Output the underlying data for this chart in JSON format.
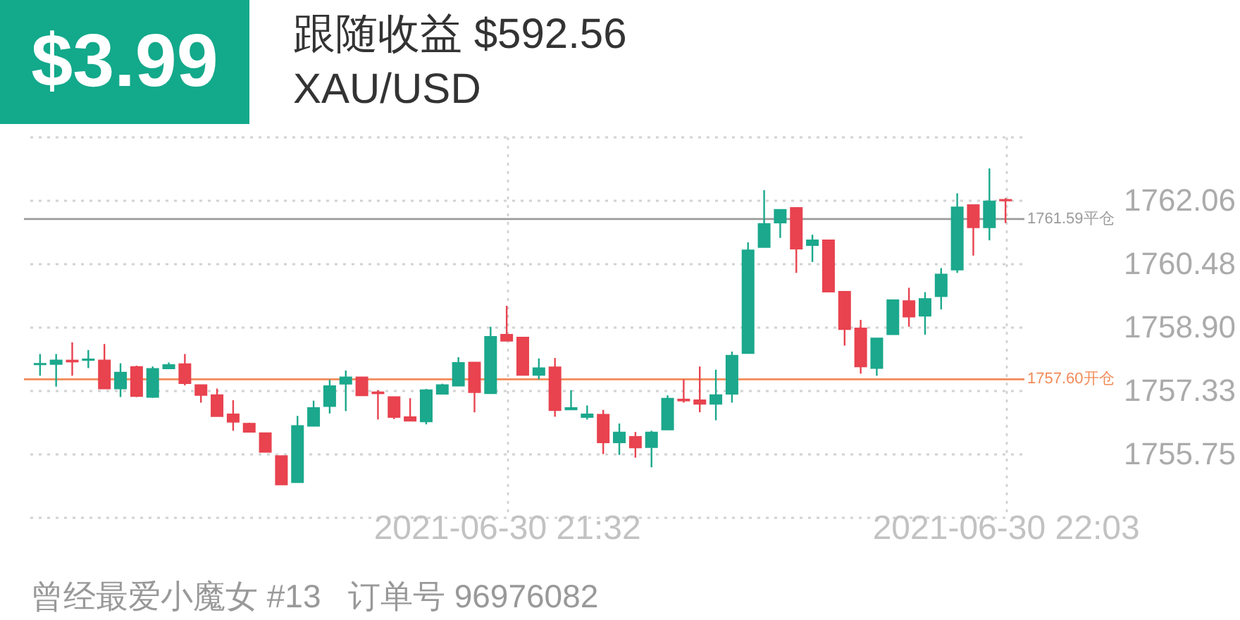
{
  "chart_data": {
    "type": "candlestick",
    "title": "跟随收益 $592.56",
    "subtitle": "XAU/USD",
    "annotations": [
      "$3.99",
      "曾经最爱小魔女 #13   订单号 96976082"
    ],
    "x": [
      "2021-06-30T21:03",
      "2021-06-30T21:04",
      "2021-06-30T21:05",
      "2021-06-30T21:06",
      "2021-06-30T21:07",
      "2021-06-30T21:08",
      "2021-06-30T21:09",
      "2021-06-30T21:10",
      "2021-06-30T21:11",
      "2021-06-30T21:12",
      "2021-06-30T21:13",
      "2021-06-30T21:14",
      "2021-06-30T21:15",
      "2021-06-30T21:16",
      "2021-06-30T21:17",
      "2021-06-30T21:18",
      "2021-06-30T21:19",
      "2021-06-30T21:20",
      "2021-06-30T21:21",
      "2021-06-30T21:22",
      "2021-06-30T21:23",
      "2021-06-30T21:24",
      "2021-06-30T21:25",
      "2021-06-30T21:26",
      "2021-06-30T21:27",
      "2021-06-30T21:28",
      "2021-06-30T21:29",
      "2021-06-30T21:30",
      "2021-06-30T21:31",
      "2021-06-30T21:32",
      "2021-06-30T21:33",
      "2021-06-30T21:34",
      "2021-06-30T21:35",
      "2021-06-30T21:36",
      "2021-06-30T21:37",
      "2021-06-30T21:38",
      "2021-06-30T21:39",
      "2021-06-30T21:40",
      "2021-06-30T21:41",
      "2021-06-30T21:42",
      "2021-06-30T21:43",
      "2021-06-30T21:44",
      "2021-06-30T21:45",
      "2021-06-30T21:46",
      "2021-06-30T21:47",
      "2021-06-30T21:48",
      "2021-06-30T21:49",
      "2021-06-30T21:50",
      "2021-06-30T21:51",
      "2021-06-30T21:52",
      "2021-06-30T21:53",
      "2021-06-30T21:54",
      "2021-06-30T21:55",
      "2021-06-30T21:56",
      "2021-06-30T21:57",
      "2021-06-30T21:58",
      "2021-06-30T21:59",
      "2021-06-30T22:00",
      "2021-06-30T22:01",
      "2021-06-30T22:02",
      "2021-06-30T22:03"
    ],
    "ohlc": [
      [
        1757.97,
        1758.23,
        1757.69,
        1757.99
      ],
      [
        1757.98,
        1758.23,
        1757.42,
        1758.07
      ],
      [
        1758.07,
        1758.52,
        1757.69,
        1758.04
      ],
      [
        1758.08,
        1758.33,
        1757.88,
        1758.1
      ],
      [
        1758.07,
        1758.48,
        1757.37,
        1757.37
      ],
      [
        1757.37,
        1758.0,
        1757.16,
        1757.77
      ],
      [
        1757.91,
        1757.94,
        1757.16,
        1757.18
      ],
      [
        1757.16,
        1757.92,
        1757.14,
        1757.86
      ],
      [
        1757.87,
        1758.02,
        1757.86,
        1757.96
      ],
      [
        1757.98,
        1758.23,
        1757.45,
        1757.5
      ],
      [
        1757.46,
        1757.46,
        1757.02,
        1757.21
      ],
      [
        1757.21,
        1757.37,
        1756.68,
        1756.68
      ],
      [
        1756.73,
        1757.08,
        1756.32,
        1756.54
      ],
      [
        1756.5,
        1756.52,
        1756.28,
        1756.29
      ],
      [
        1756.26,
        1756.26,
        1755.79,
        1755.79
      ],
      [
        1755.69,
        1755.69,
        1754.98,
        1754.98
      ],
      [
        1755.04,
        1756.69,
        1755.03,
        1756.44
      ],
      [
        1756.44,
        1757.07,
        1756.44,
        1756.89
      ],
      [
        1756.93,
        1757.59,
        1756.75,
        1757.43
      ],
      [
        1757.49,
        1757.82,
        1756.81,
        1757.65
      ],
      [
        1757.65,
        1757.65,
        1757.2,
        1757.2
      ],
      [
        1757.28,
        1757.33,
        1756.6,
        1757.25
      ],
      [
        1757.16,
        1757.16,
        1756.61,
        1756.66
      ],
      [
        1756.66,
        1757.13,
        1756.56,
        1756.57
      ],
      [
        1756.55,
        1757.36,
        1756.48,
        1757.33
      ],
      [
        1757.24,
        1757.49,
        1757.24,
        1757.46
      ],
      [
        1757.44,
        1758.15,
        1757.44,
        1758.01
      ],
      [
        1758.02,
        1758.02,
        1756.78,
        1757.28
      ],
      [
        1757.25,
        1758.91,
        1757.25,
        1758.66
      ],
      [
        1758.71,
        1759.43,
        1758.56,
        1758.56
      ],
      [
        1758.64,
        1758.64,
        1757.71,
        1757.71
      ],
      [
        1757.71,
        1758.12,
        1757.6,
        1757.88
      ],
      [
        1757.9,
        1758.13,
        1756.67,
        1756.83
      ],
      [
        1756.85,
        1757.33,
        1756.85,
        1756.89
      ],
      [
        1756.66,
        1756.95,
        1756.6,
        1756.73
      ],
      [
        1756.72,
        1756.84,
        1755.74,
        1756.03
      ],
      [
        1756.03,
        1756.5,
        1755.72,
        1756.28
      ],
      [
        1756.17,
        1756.29,
        1755.65,
        1755.9
      ],
      [
        1755.91,
        1756.32,
        1755.41,
        1756.28
      ],
      [
        1756.35,
        1757.2,
        1756.35,
        1757.12
      ],
      [
        1757.1,
        1757.6,
        1757.02,
        1757.07
      ],
      [
        1757.08,
        1757.92,
        1756.78,
        1756.99
      ],
      [
        1756.99,
        1757.84,
        1756.58,
        1757.21
      ],
      [
        1757.24,
        1758.29,
        1757.02,
        1758.19
      ],
      [
        1758.25,
        1761.01,
        1758.25,
        1760.81
      ],
      [
        1760.89,
        1762.31,
        1760.89,
        1761.47
      ],
      [
        1761.5,
        1761.82,
        1761.12,
        1761.82
      ],
      [
        1761.87,
        1761.87,
        1760.25,
        1760.85
      ],
      [
        1760.94,
        1761.2,
        1760.52,
        1761.06
      ],
      [
        1761.06,
        1761.06,
        1759.78,
        1759.78
      ],
      [
        1759.78,
        1759.78,
        1758.44,
        1758.85
      ],
      [
        1758.87,
        1759.08,
        1757.74,
        1757.92
      ],
      [
        1757.88,
        1758.62,
        1757.69,
        1758.62
      ],
      [
        1758.72,
        1759.57,
        1758.72,
        1759.57
      ],
      [
        1759.55,
        1759.88,
        1758.91,
        1759.16
      ],
      [
        1759.18,
        1759.77,
        1758.71,
        1759.6
      ],
      [
        1759.67,
        1760.37,
        1759.34,
        1760.21
      ],
      [
        1760.33,
        1762.23,
        1760.25,
        1761.88
      ],
      [
        1761.94,
        1761.94,
        1760.68,
        1761.38
      ],
      [
        1761.38,
        1762.85,
        1761.06,
        1762.03
      ],
      [
        1762.07,
        1762.11,
        1761.49,
        1762.05
      ]
    ],
    "colors": [
      "#1ba88c",
      "#1ba88c",
      "#e8434f",
      "#1ba88c",
      "#e8434f",
      "#1ba88c",
      "#e8434f",
      "#1ba88c",
      "#1ba88c",
      "#e8434f",
      "#e8434f",
      "#e8434f",
      "#e8434f",
      "#e8434f",
      "#e8434f",
      "#e8434f",
      "#1ba88c",
      "#1ba88c",
      "#1ba88c",
      "#1ba88c",
      "#e8434f",
      "#e8434f",
      "#e8434f",
      "#e8434f",
      "#1ba88c",
      "#1ba88c",
      "#1ba88c",
      "#e8434f",
      "#1ba88c",
      "#e8434f",
      "#e8434f",
      "#1ba88c",
      "#e8434f",
      "#1ba88c",
      "#1ba88c",
      "#e8434f",
      "#1ba88c",
      "#e8434f",
      "#1ba88c",
      "#1ba88c",
      "#e8434f",
      "#e8434f",
      "#1ba88c",
      "#1ba88c",
      "#1ba88c",
      "#1ba88c",
      "#1ba88c",
      "#e8434f",
      "#1ba88c",
      "#e8434f",
      "#e8434f",
      "#e8434f",
      "#1ba88c",
      "#1ba88c",
      "#e8434f",
      "#1ba88c",
      "#1ba88c",
      "#1ba88c",
      "#e8434f",
      "#1ba88c",
      "#e8434f"
    ],
    "xlim": [
      "2021-06-30T21:02",
      "2021-06-30T22:04"
    ],
    "xticks": [
      {
        "value": "2021-06-30T21:32",
        "label": "2021-06-30 21:32"
      },
      {
        "value": "2021-06-30T22:03",
        "label": "2021-06-30 22:03"
      }
    ],
    "ylim": [
      1754.17,
      1763.64
    ],
    "yticks": [
      {
        "value": 1754.17,
        "label": null
      },
      1755.75,
      1757.33,
      {
        "value": 1758.9,
        "label": "1758.90"
      },
      1760.48,
      1762.06,
      {
        "value": 1763.64,
        "label": null
      }
    ],
    "grid": true,
    "ref_lines": [
      {
        "axis": "y",
        "value": 1761.59,
        "label": "1761.59平仓",
        "color": "#9b9b9b"
      },
      {
        "axis": "y",
        "value": 1757.6,
        "label": "1757.60开仓",
        "color": "#f28a58"
      }
    ]
  }
}
